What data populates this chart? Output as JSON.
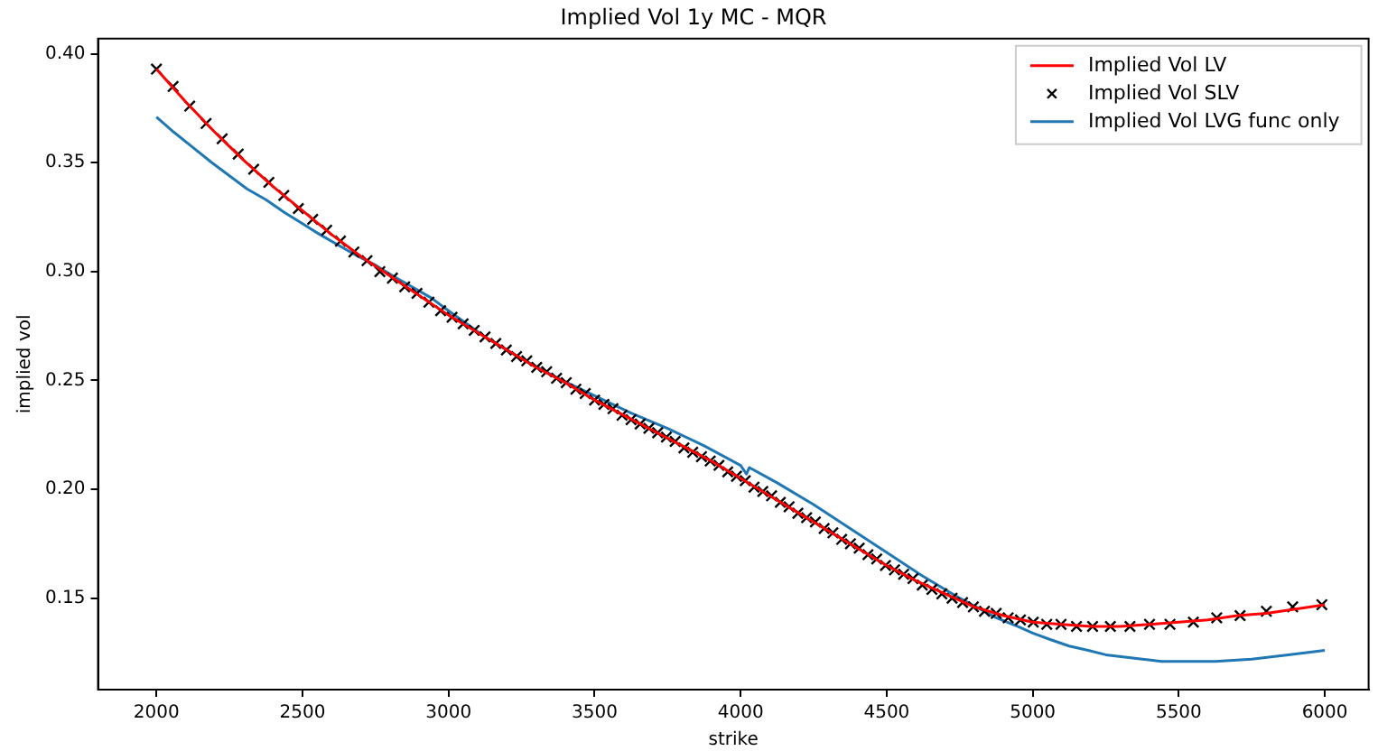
{
  "chart_data": {
    "type": "line",
    "title": "Implied Vol 1y MC - MQR",
    "xlabel": "strike",
    "ylabel": "implied vol",
    "xlim": [
      1800,
      6150
    ],
    "ylim": [
      0.108,
      0.407
    ],
    "xticks": [
      2000,
      2500,
      3000,
      3500,
      4000,
      4500,
      5000,
      5500,
      6000
    ],
    "yticks": [
      {
        "value": 0.15,
        "label": "0.15"
      },
      {
        "value": 0.2,
        "label": "0.20"
      },
      {
        "value": 0.25,
        "label": "0.25"
      },
      {
        "value": 0.3,
        "label": "0.30"
      },
      {
        "value": 0.35,
        "label": "0.35"
      },
      {
        "value": 0.4,
        "label": "0.40"
      }
    ],
    "grid": false,
    "legend": "top right",
    "series": [
      {
        "name": "Implied Vol LV",
        "type": "line",
        "color": "#ff0000",
        "marker": "none",
        "line_style": "solid",
        "x": [
          2000,
          2100,
          2200,
          2300,
          2400,
          2500,
          2600,
          2700,
          2800,
          2900,
          3000,
          3100,
          3200,
          3300,
          3400,
          3500,
          3600,
          3700,
          3800,
          3900,
          4000,
          4100,
          4200,
          4300,
          4400,
          4500,
          4600,
          4700,
          4800,
          4900,
          5000,
          5100,
          5200,
          5300,
          5400,
          5500,
          5600,
          5700,
          5800,
          5900,
          6000
        ],
        "values": [
          0.393,
          0.378,
          0.364,
          0.351,
          0.339,
          0.328,
          0.317,
          0.307,
          0.298,
          0.289,
          0.28,
          0.272,
          0.264,
          0.256,
          0.249,
          0.241,
          0.234,
          0.227,
          0.22,
          0.213,
          0.205,
          0.197,
          0.189,
          0.181,
          0.173,
          0.165,
          0.158,
          0.152,
          0.146,
          0.142,
          0.139,
          0.138,
          0.137,
          0.137,
          0.138,
          0.139,
          0.14,
          0.142,
          0.143,
          0.145,
          0.147
        ]
      },
      {
        "name": "Implied Vol SLV",
        "type": "scatter",
        "color": "#000000",
        "marker": "cross",
        "x": [
          2000,
          2057,
          2114,
          2170,
          2225,
          2280,
          2333,
          2385,
          2436,
          2486,
          2535,
          2583,
          2630,
          2676,
          2721,
          2765,
          2808,
          2850,
          2892,
          2933,
          2973,
          3012,
          3050,
          3088,
          3125,
          3162,
          3198,
          3233,
          3268,
          3302,
          3336,
          3370,
          3403,
          3436,
          3468,
          3500,
          3532,
          3563,
          3594,
          3625,
          3656,
          3686,
          3716,
          3746,
          3776,
          3806,
          3836,
          3866,
          3896,
          3926,
          3956,
          3986,
          4016,
          4046,
          4076,
          4106,
          4136,
          4166,
          4196,
          4226,
          4256,
          4286,
          4316,
          4346,
          4376,
          4406,
          4436,
          4466,
          4496,
          4527,
          4558,
          4590,
          4622,
          4655,
          4689,
          4724,
          4760,
          4797,
          4835,
          4875,
          4916,
          4958,
          5002,
          5048,
          5097,
          5150,
          5205,
          5266,
          5333,
          5400,
          5470,
          5550,
          5630,
          5710,
          5800,
          5890,
          5990
        ],
        "values": [
          0.393,
          0.385,
          0.376,
          0.368,
          0.361,
          0.354,
          0.347,
          0.341,
          0.335,
          0.329,
          0.324,
          0.319,
          0.314,
          0.309,
          0.305,
          0.3,
          0.297,
          0.293,
          0.29,
          0.286,
          0.282,
          0.279,
          0.276,
          0.273,
          0.27,
          0.267,
          0.264,
          0.261,
          0.259,
          0.256,
          0.254,
          0.251,
          0.249,
          0.246,
          0.244,
          0.241,
          0.239,
          0.237,
          0.234,
          0.232,
          0.23,
          0.228,
          0.226,
          0.224,
          0.222,
          0.219,
          0.217,
          0.215,
          0.213,
          0.211,
          0.208,
          0.206,
          0.204,
          0.201,
          0.199,
          0.197,
          0.194,
          0.192,
          0.189,
          0.187,
          0.185,
          0.182,
          0.18,
          0.177,
          0.175,
          0.173,
          0.17,
          0.168,
          0.165,
          0.163,
          0.161,
          0.159,
          0.156,
          0.154,
          0.152,
          0.15,
          0.148,
          0.146,
          0.144,
          0.143,
          0.141,
          0.14,
          0.139,
          0.138,
          0.138,
          0.137,
          0.137,
          0.137,
          0.137,
          0.138,
          0.138,
          0.139,
          0.141,
          0.142,
          0.144,
          0.146,
          0.147
        ]
      },
      {
        "name": "Implied Vol LVG func only",
        "type": "line",
        "color": "#1f77b4",
        "marker": "none",
        "line_style": "solid",
        "x": [
          2000,
          2060,
          2125,
          2190,
          2250,
          2310,
          2375,
          2440,
          2500,
          2560,
          2625,
          2690,
          2750,
          2810,
          2875,
          2940,
          3000,
          3125,
          3250,
          3375,
          3500,
          3625,
          3750,
          3875,
          4000,
          4020,
          4030,
          4125,
          4250,
          4375,
          4500,
          4625,
          4750,
          4875,
          4950,
          5000,
          5060,
          5125,
          5190,
          5250,
          5310,
          5375,
          5440,
          5500,
          5625,
          5750,
          5875,
          6000
        ],
        "values": [
          0.371,
          0.364,
          0.357,
          0.35,
          0.344,
          0.338,
          0.333,
          0.327,
          0.322,
          0.317,
          0.312,
          0.307,
          0.303,
          0.298,
          0.293,
          0.288,
          0.282,
          0.27,
          0.26,
          0.251,
          0.243,
          0.235,
          0.228,
          0.22,
          0.211,
          0.207,
          0.21,
          0.203,
          0.193,
          0.182,
          0.171,
          0.16,
          0.15,
          0.141,
          0.137,
          0.134,
          0.131,
          0.128,
          0.126,
          0.124,
          0.123,
          0.122,
          0.121,
          0.121,
          0.121,
          0.122,
          0.124,
          0.126
        ]
      }
    ]
  }
}
